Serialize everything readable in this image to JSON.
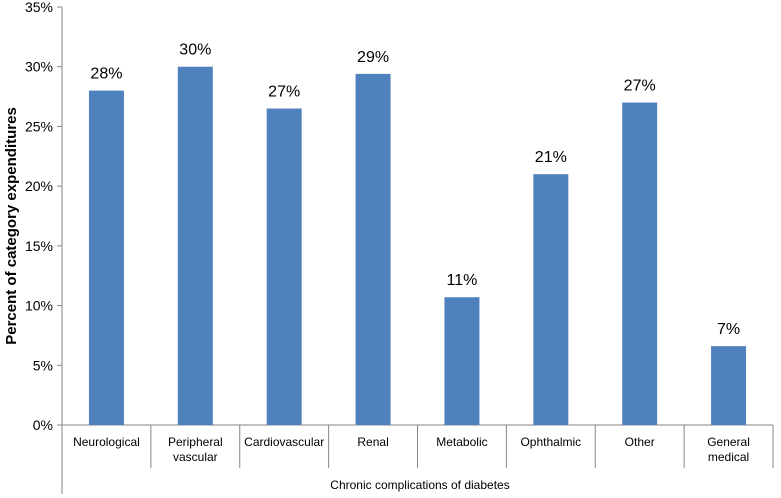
{
  "chart_data": {
    "type": "bar",
    "categories": [
      [
        "Neurological"
      ],
      [
        "Peripheral",
        "vascular"
      ],
      [
        "Cardiovascular"
      ],
      [
        "Renal"
      ],
      [
        "Metabolic"
      ],
      [
        "Ophthalmic"
      ],
      [
        "Other"
      ],
      [
        "General",
        "medical"
      ]
    ],
    "values": [
      28,
      30,
      26.5,
      29.4,
      10.7,
      21,
      27,
      6.6
    ],
    "data_labels": [
      "28%",
      "30%",
      "27%",
      "29%",
      "11%",
      "21%",
      "27%",
      "7%"
    ],
    "ylabel": "Percent of category expenditures",
    "xlabel": "Chronic complications of diabetes",
    "ylim": [
      0,
      35
    ],
    "yticks": [
      0,
      5,
      10,
      15,
      20,
      25,
      30,
      35
    ],
    "ytick_labels": [
      "0%",
      "5%",
      "10%",
      "15%",
      "20%",
      "25%",
      "30%",
      "35%"
    ],
    "grid": false,
    "legend": "none",
    "bar_color": "#4f81bd"
  }
}
